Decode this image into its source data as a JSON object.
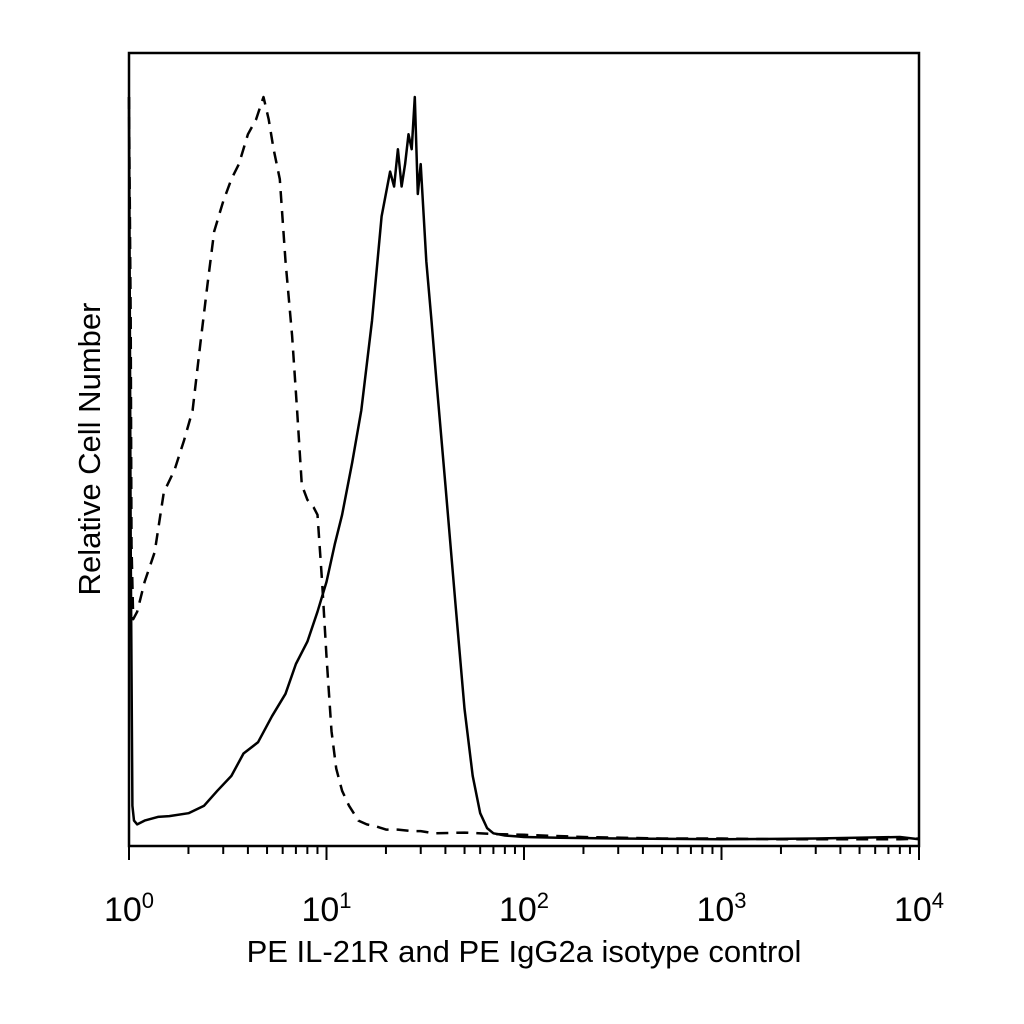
{
  "chart_data": {
    "type": "line",
    "title": "",
    "xlabel": "PE IL-21R and PE IgG2a isotype control",
    "ylabel": "Relative Cell Number",
    "x_scale": "log",
    "xlim": [
      1,
      10000
    ],
    "ylim": [
      0,
      100
    ],
    "grid": false,
    "legend": "none",
    "x_ticks": [
      {
        "base": "10",
        "exp": "0",
        "value": 1
      },
      {
        "base": "10",
        "exp": "1",
        "value": 10
      },
      {
        "base": "10",
        "exp": "2",
        "value": 100
      },
      {
        "base": "10",
        "exp": "3",
        "value": 1000
      },
      {
        "base": "10",
        "exp": "4",
        "value": 10000
      }
    ],
    "series": [
      {
        "style": "dashed",
        "color": "#000000",
        "x": [
          1.0,
          1.02,
          1.03,
          1.05,
          1.1,
          1.2,
          1.35,
          1.5,
          1.7,
          1.9,
          2.1,
          2.3,
          2.5,
          2.7,
          3.0,
          3.3,
          3.6,
          4.0,
          4.4,
          4.8,
          5.1,
          5.4,
          5.8,
          6.2,
          6.7,
          7.1,
          7.5,
          8.0,
          8.6,
          9.0,
          9.5,
          10.0,
          10.6,
          11.2,
          12.0,
          13.0,
          14.5,
          16.0,
          18.0,
          20.0,
          23.0,
          27.0,
          30.0,
          35.0,
          50.0,
          70.0,
          100.0,
          200.0,
          500.0,
          1000.0,
          2000.0,
          5000.0,
          8000.0,
          10000.0
        ],
        "y": [
          100,
          70,
          40,
          30,
          31,
          35,
          39,
          47,
          50,
          54,
          58,
          67,
          75,
          82,
          86,
          89,
          91,
          95,
          97,
          100,
          97,
          93,
          89,
          78,
          68,
          58,
          48,
          46,
          45,
          44,
          35,
          25,
          15,
          10,
          7,
          5,
          3,
          2.5,
          2.2,
          1.8,
          1.8,
          1.6,
          1.6,
          1.3,
          1.4,
          1.2,
          1.1,
          0.8,
          0.6,
          0.6,
          0.5,
          0.5,
          0.5,
          0.6
        ]
      },
      {
        "style": "solid",
        "color": "#000000",
        "x": [
          1.0,
          1.02,
          1.04,
          1.06,
          1.1,
          1.2,
          1.4,
          1.6,
          2.0,
          2.4,
          2.8,
          3.3,
          3.8,
          4.5,
          5.3,
          6.2,
          7.0,
          8.0,
          9.0,
          10.0,
          11.0,
          12.0,
          13.5,
          15.0,
          17.0,
          19.0,
          21.0,
          22.0,
          23.0,
          24.0,
          25.0,
          26.0,
          27.0,
          28.0,
          29.0,
          30.0,
          32.0,
          34.0,
          36.0,
          40.0,
          45.0,
          50.0,
          55.0,
          60.0,
          65.0,
          70.0,
          80.0,
          90.0,
          100.0,
          150.0,
          300.0,
          1000.0,
          3000.0,
          8000.0,
          10000.0
        ],
        "y": [
          100,
          40,
          5,
          3,
          2.5,
          3,
          3.5,
          3.6,
          4,
          5,
          7,
          9,
          12,
          13.5,
          17,
          20,
          24,
          27,
          31,
          35,
          40,
          44,
          51,
          58,
          70,
          84,
          90,
          88,
          93,
          88,
          91,
          95,
          93,
          100,
          87,
          91,
          78,
          70,
          62,
          48,
          32,
          18,
          9,
          4,
          2,
          1.3,
          1.0,
          0.9,
          0.8,
          0.7,
          0.6,
          0.5,
          0.6,
          0.8,
          0.5
        ]
      }
    ]
  }
}
